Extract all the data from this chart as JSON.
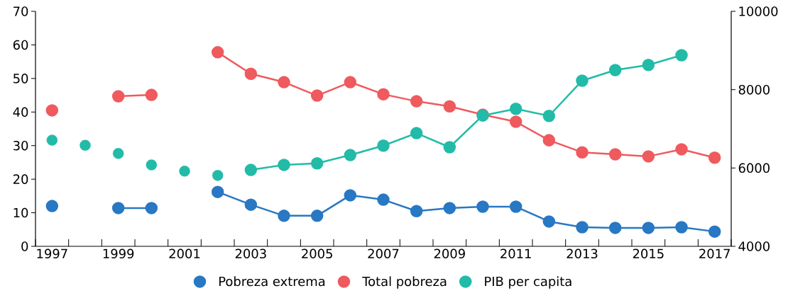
{
  "chart_data": {
    "type": "line",
    "categories": [
      "1997",
      null,
      "1999",
      null,
      "2001",
      null,
      "2003",
      null,
      "2005",
      null,
      "2007",
      null,
      "2009",
      null,
      "2011",
      null,
      "2013",
      null,
      "2015",
      null,
      "2017"
    ],
    "series": [
      {
        "name": "Pobreza extrema",
        "color": "#2878c3",
        "values": [
          12.0,
          null,
          11.4,
          11.4,
          null,
          16.2,
          12.4,
          9.1,
          9.1,
          15.2,
          13.9,
          10.5,
          11.4,
          11.8,
          11.8,
          7.4,
          5.7,
          5.5,
          5.5,
          5.7,
          4.4
        ]
      },
      {
        "name": "Total pobreza",
        "color": "#ef5a5e",
        "values": [
          40.5,
          null,
          44.7,
          45.1,
          null,
          57.8,
          51.4,
          48.9,
          44.9,
          48.9,
          45.3,
          43.2,
          41.7,
          39.2,
          37.1,
          31.6,
          28.0,
          27.4,
          26.8,
          28.9,
          26.4
        ]
      },
      {
        "name": "PIB per capita",
        "color": "#22bba8",
        "axis": "y2",
        "values": [
          null,
          null,
          null,
          null,
          null,
          null,
          5950,
          6080,
          6120,
          6330,
          6570,
          6890,
          6530,
          7340,
          7510,
          7330,
          8230,
          8500,
          8630,
          8880,
          null
        ]
      },
      {
        "type": "scatter",
        "color": "#22bba8",
        "axis": "y2",
        "values": [
          6710,
          6580,
          6370,
          6080,
          5920,
          5810,
          null,
          null,
          null,
          null,
          null,
          null,
          null,
          null,
          null,
          null,
          null,
          null,
          null,
          null,
          null
        ]
      }
    ],
    "ylim": [
      0,
      70
    ],
    "yticks": [
      0,
      10,
      20,
      30,
      40,
      50,
      60,
      70
    ],
    "y2lim": [
      4000,
      10000
    ],
    "y2ticks": [
      4000,
      6000,
      8000,
      10000
    ],
    "grid": false,
    "legend": "bottom",
    "marker": "circle",
    "line_style": "solid"
  }
}
